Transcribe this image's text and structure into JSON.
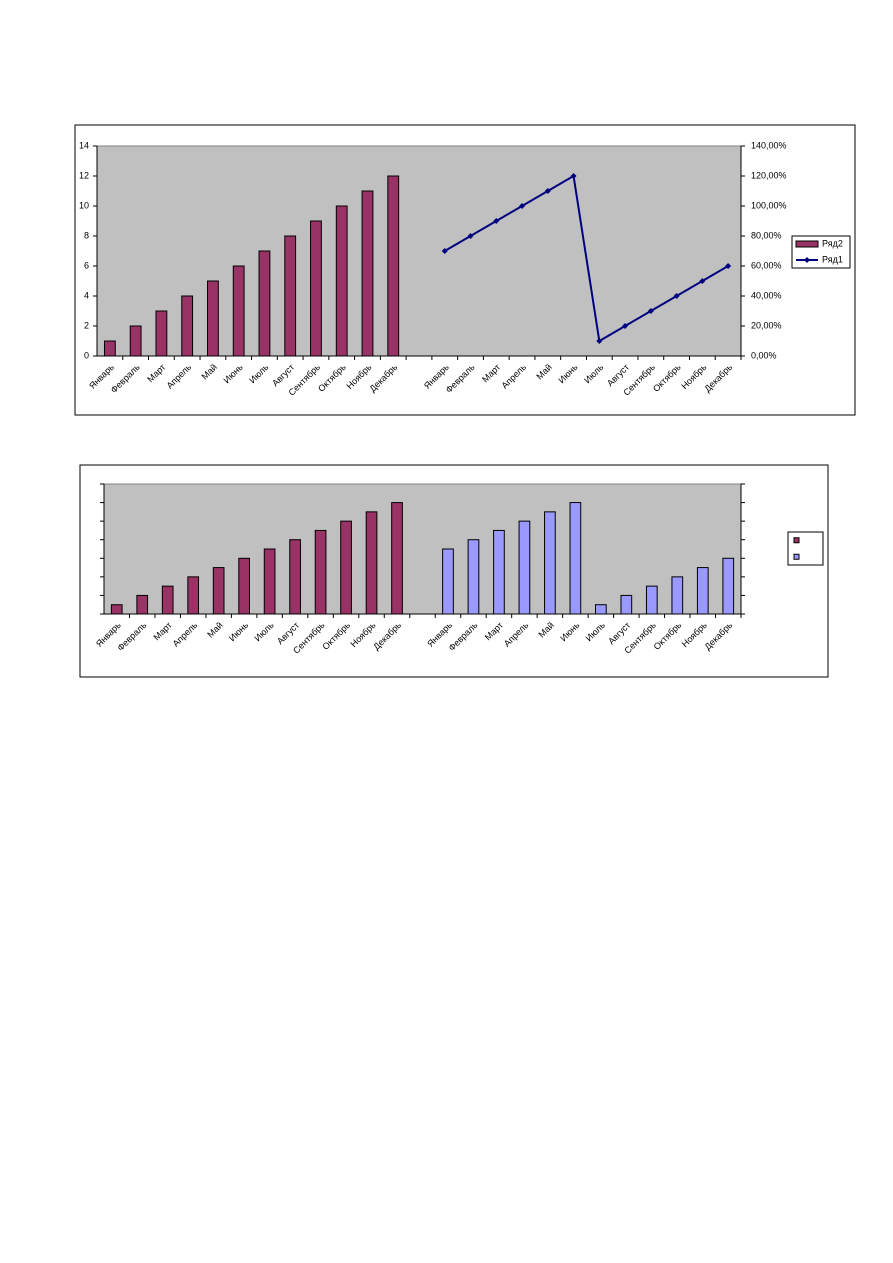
{
  "chart_data": [
    {
      "type": "bar",
      "categories": [
        "Январь",
        "Февраль",
        "Март",
        "Апрель",
        "Май",
        "Июнь",
        "Июль",
        "Август",
        "Сентябрь",
        "Октябрь",
        "Ноябрь",
        "Декабрь",
        null,
        "Январь",
        "Февраль",
        "Март",
        "Апрель",
        "Май",
        "Июнь",
        "Июль",
        "Август",
        "Сентябрь",
        "Октябрь",
        "Ноябрь",
        "Декабрь"
      ],
      "series": [
        {
          "name": "Ряд2",
          "type": "bar",
          "color": "#993366",
          "values": [
            1,
            2,
            3,
            4,
            5,
            6,
            7,
            8,
            9,
            10,
            11,
            12,
            null,
            null,
            null,
            null,
            null,
            null,
            null,
            null,
            null,
            null,
            null,
            null,
            null
          ]
        },
        {
          "name": "Ряд1",
          "type": "line",
          "axis": "y2",
          "color": "#000080",
          "values": [
            null,
            null,
            null,
            null,
            null,
            null,
            null,
            null,
            null,
            null,
            null,
            null,
            null,
            70,
            80,
            90,
            100,
            110,
            120,
            10,
            20,
            30,
            40,
            50,
            60
          ]
        }
      ],
      "ylim": [
        0,
        14
      ],
      "yticks": [
        0,
        2,
        4,
        6,
        8,
        10,
        12,
        14
      ],
      "y2lim": [
        0,
        140
      ],
      "y2ticks": [
        {
          "value": 0,
          "label": "0,00%"
        },
        {
          "value": 20,
          "label": "20,00%"
        },
        {
          "value": 40,
          "label": "40,00%"
        },
        {
          "value": 60,
          "label": "60,00%"
        },
        {
          "value": 80,
          "label": "80,00%"
        },
        {
          "value": 100,
          "label": "100,00%"
        },
        {
          "value": 120,
          "label": "120,00%"
        },
        {
          "value": 140,
          "label": "140,00%"
        }
      ],
      "tick_labels": true,
      "legend": "right",
      "plot_background": "#c0c0c0"
    },
    {
      "type": "bar",
      "categories": [
        "Январь",
        "Февраль",
        "Март",
        "Апрель",
        "Май",
        "Июнь",
        "Июль",
        "Август",
        "Сентябрь",
        "Октябрь",
        "Ноябрь",
        "Декабрь",
        null,
        "Январь",
        "Февраль",
        "Март",
        "Апрель",
        "Май",
        "Июнь",
        "Июль",
        "Август",
        "Сентябрь",
        "Октябрь",
        "Ноябрь",
        "Декабрь"
      ],
      "series": [
        {
          "type": "bar",
          "color": "#993366",
          "values": [
            1,
            2,
            3,
            4,
            5,
            6,
            7,
            8,
            9,
            10,
            11,
            12,
            null,
            null,
            null,
            null,
            null,
            null,
            null,
            null,
            null,
            null,
            null,
            null,
            null
          ]
        },
        {
          "type": "bar",
          "axis": "y2",
          "color": "#9999ff",
          "values": [
            null,
            null,
            null,
            null,
            null,
            null,
            null,
            null,
            null,
            null,
            null,
            null,
            null,
            70,
            80,
            90,
            100,
            110,
            120,
            10,
            20,
            30,
            40,
            50,
            60
          ]
        }
      ],
      "ylim": [
        0,
        14
      ],
      "yticks": [
        0,
        2,
        4,
        6,
        8,
        10,
        12,
        14
      ],
      "y2lim": [
        0,
        140
      ],
      "y2ticks": [
        0,
        20,
        40,
        60,
        80,
        100,
        120,
        140
      ],
      "tick_labels": false,
      "legend": "right",
      "plot_background": "#c0c0c0"
    }
  ]
}
